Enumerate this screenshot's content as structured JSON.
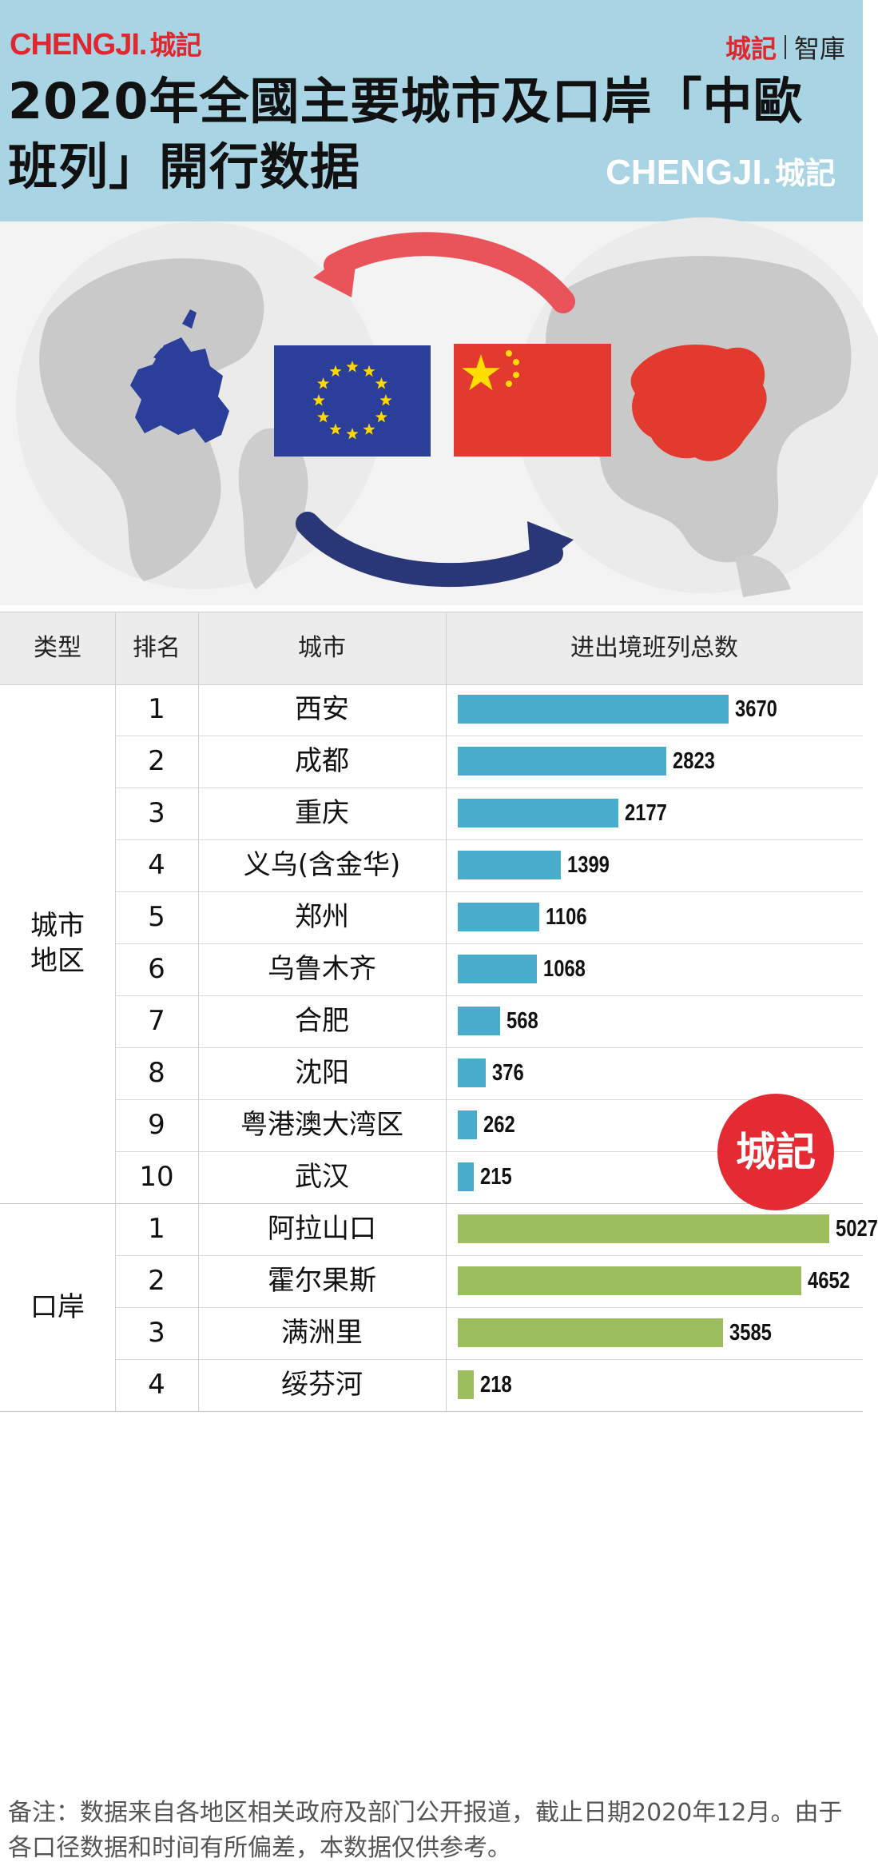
{
  "header": {
    "brand_en": "CHENGJI.",
    "brand_cn": "城記",
    "brand_right_1": "城記",
    "brand_right_2": "智庫",
    "title": "2020年全國主要城市及口岸「中歐班列」開行数据",
    "watermark_en": "CHENGJI.",
    "watermark_cn": "城記"
  },
  "colors": {
    "header_bg": "#a9d4e3",
    "brand_red": "#e0262e",
    "bar_city": "#4aaccc",
    "bar_port": "#9bbd5b",
    "eu_blue": "#2a3e9a",
    "china_red": "#e23a2e",
    "arrow_red": "#e9545a",
    "arrow_navy": "#293777"
  },
  "banner": {
    "icons": [
      "globe-europe-icon",
      "eu-flag-icon",
      "china-flag-icon",
      "globe-asia-icon",
      "arrow-red-icon",
      "arrow-navy-icon"
    ]
  },
  "table": {
    "headers": [
      "类型",
      "排名",
      "城市",
      "进出境班列总数"
    ],
    "groups": [
      {
        "type": "城市地区",
        "type_lines": [
          "城市",
          "地区"
        ]
      },
      {
        "type": "口岸",
        "type_lines": [
          "口岸"
        ]
      }
    ]
  },
  "chart_data": {
    "type": "bar",
    "title": "",
    "xlabel": "",
    "ylabel": "进出境班列总数",
    "series": [
      {
        "name": "城市地区",
        "ranks": [
          "1",
          "2",
          "3",
          "4",
          "5",
          "6",
          "7",
          "8",
          "9",
          "10"
        ],
        "categories": [
          "西安",
          "成都",
          "重庆",
          "义乌(含金华)",
          "郑州",
          "乌鲁木齐",
          "合肥",
          "沈阳",
          "粤港澳大湾区",
          "武汉"
        ],
        "values": [
          3670,
          2823,
          2177,
          1399,
          1106,
          1068,
          568,
          376,
          262,
          215
        ]
      },
      {
        "name": "口岸",
        "ranks": [
          "1",
          "2",
          "3",
          "4"
        ],
        "categories": [
          "阿拉山口",
          "霍尔果斯",
          "满洲里",
          "绥芬河"
        ],
        "values": [
          5027,
          4652,
          3585,
          218
        ]
      }
    ],
    "grid": false,
    "legend": "none"
  },
  "seal": {
    "text": "城記"
  },
  "footer": {
    "note": "备注：数据来自各地区相关政府及部门公开报道，截止日期2020年12月。由于各口径数据和时间有所偏差，本数据仅供参考。"
  }
}
